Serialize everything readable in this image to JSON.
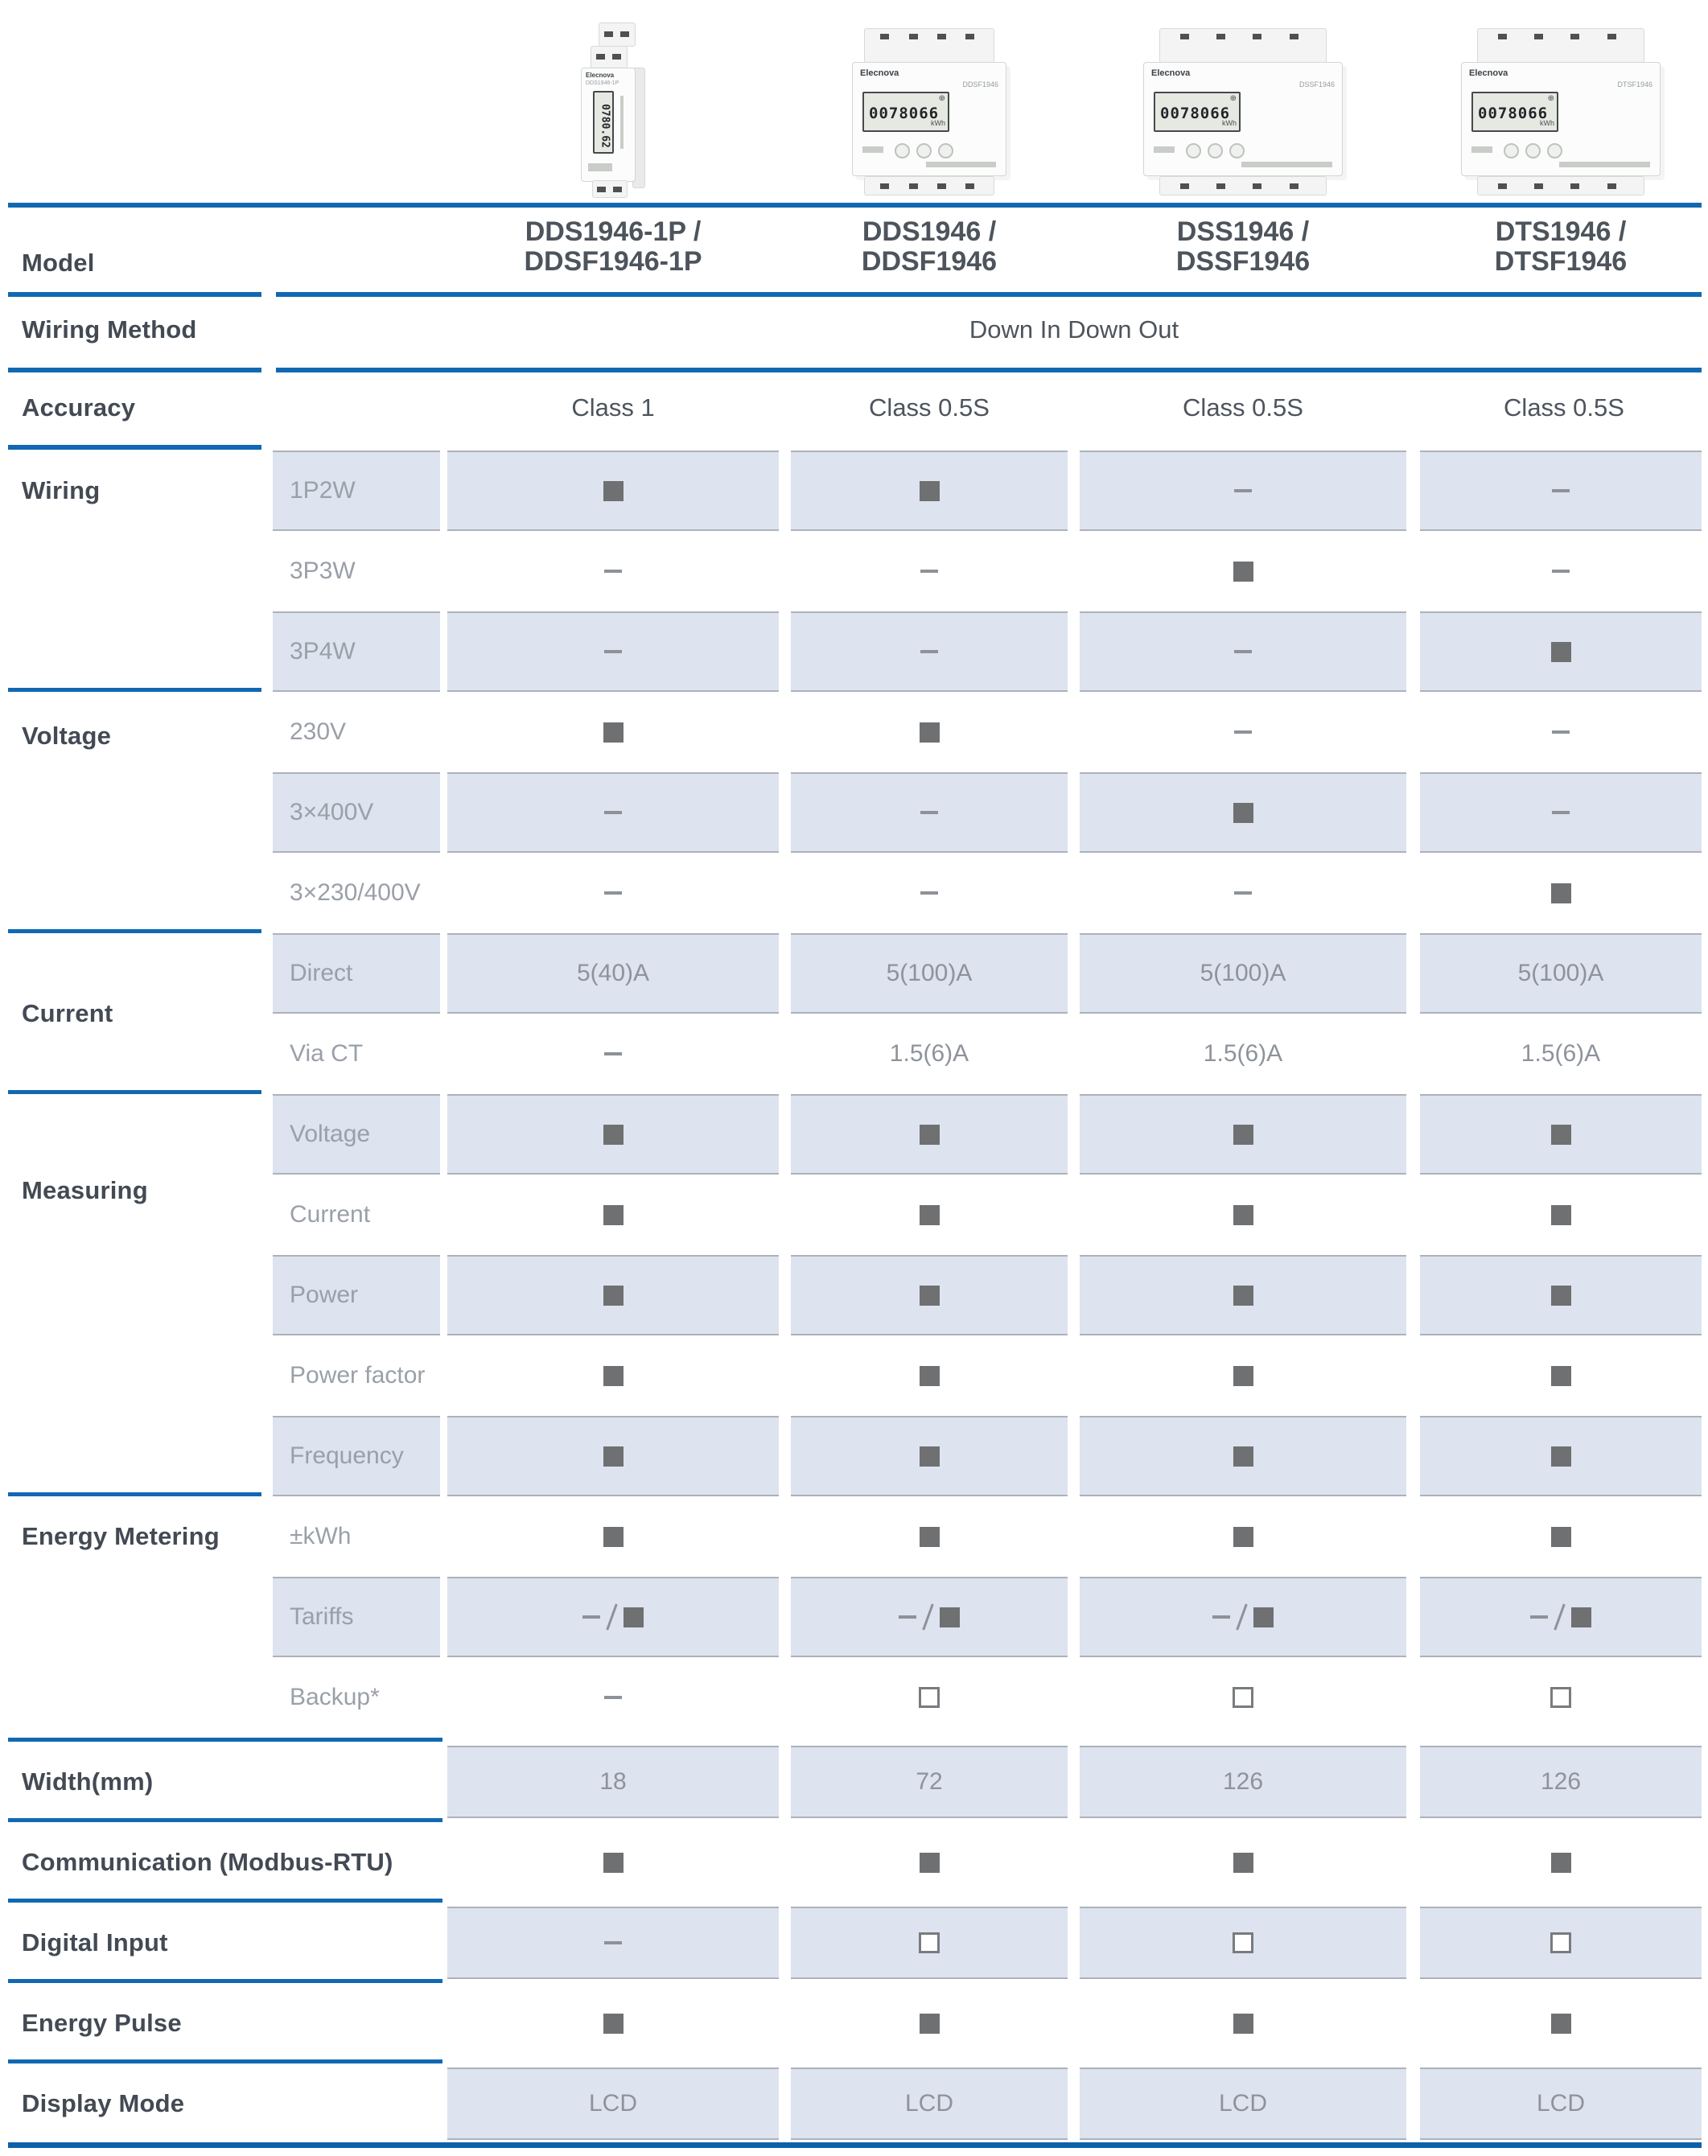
{
  "brand_color": "#1168b3",
  "header": {
    "model_label": "Model",
    "products": [
      {
        "model_line1": "DDS1946-1P /",
        "model_line2": "DDSF1946-1P",
        "brand": "Elecnova",
        "panel_code": "DDS1946-1P",
        "display_value": "0780.62",
        "display_unit": "kWh",
        "style": "slim"
      },
      {
        "model_line1": "DDS1946 /",
        "model_line2": "DDSF1946",
        "brand": "Elecnova",
        "panel_code": "DDSF1946",
        "display_value": "0078066",
        "display_unit": "kWh",
        "style": "wide"
      },
      {
        "model_line1": "DSS1946 /",
        "model_line2": "DSSF1946",
        "brand": "Elecnova",
        "panel_code": "DSSF1946",
        "display_value": "0078066",
        "display_unit": "kWh",
        "style": "wide"
      },
      {
        "model_line1": "DTS1946 /",
        "model_line2": "DTSF1946",
        "brand": "Elecnova",
        "panel_code": "DTSF1946",
        "display_value": "0078066",
        "display_unit": "kWh",
        "style": "wide"
      }
    ]
  },
  "top_rows": {
    "wiring_method": {
      "label": "Wiring Method",
      "value": "Down In Down Out"
    },
    "accuracy": {
      "label": "Accuracy",
      "values": [
        "Class 1",
        "Class 0.5S",
        "Class 0.5S",
        "Class 0.5S"
      ]
    }
  },
  "sections": [
    {
      "label": "Wiring",
      "rows": [
        {
          "sub": "1P2W",
          "cells": [
            "filled",
            "filled",
            "dash",
            "dash"
          ]
        },
        {
          "sub": "3P3W",
          "cells": [
            "dash",
            "dash",
            "filled",
            "dash"
          ]
        },
        {
          "sub": "3P4W",
          "cells": [
            "dash",
            "dash",
            "dash",
            "filled"
          ]
        }
      ]
    },
    {
      "label": "Voltage",
      "rows": [
        {
          "sub": "230V",
          "cells": [
            "filled",
            "filled",
            "dash",
            "dash"
          ]
        },
        {
          "sub": "3×400V",
          "cells": [
            "dash",
            "dash",
            "filled",
            "dash"
          ]
        },
        {
          "sub": "3×230/400V",
          "cells": [
            "dash",
            "dash",
            "dash",
            "filled"
          ]
        }
      ]
    },
    {
      "label": "Current",
      "rows": [
        {
          "sub": "Direct",
          "cells": [
            "5(40)A",
            "5(100)A",
            "5(100)A",
            "5(100)A"
          ]
        },
        {
          "sub": "Via CT",
          "cells": [
            "dash",
            "1.5(6)A",
            "1.5(6)A",
            "1.5(6)A"
          ]
        }
      ]
    },
    {
      "label": "Measuring",
      "rows": [
        {
          "sub": "Voltage",
          "cells": [
            "filled",
            "filled",
            "filled",
            "filled"
          ]
        },
        {
          "sub": "Current",
          "cells": [
            "filled",
            "filled",
            "filled",
            "filled"
          ]
        },
        {
          "sub": "Power",
          "cells": [
            "filled",
            "filled",
            "filled",
            "filled"
          ]
        },
        {
          "sub": "Power factor",
          "cells": [
            "filled",
            "filled",
            "filled",
            "filled"
          ]
        },
        {
          "sub": "Frequency",
          "cells": [
            "filled",
            "filled",
            "filled",
            "filled"
          ]
        }
      ]
    },
    {
      "label": "Energy Metering",
      "rows": [
        {
          "sub": "±kWh",
          "cells": [
            "filled",
            "filled",
            "filled",
            "filled"
          ]
        },
        {
          "sub": "Tariffs",
          "cells": [
            "dash/filled",
            "dash/filled",
            "dash/filled",
            "dash/filled"
          ]
        },
        {
          "sub": "Backup*",
          "cells": [
            "dash",
            "hollow",
            "hollow",
            "hollow"
          ]
        }
      ]
    }
  ],
  "bottom_rows": [
    {
      "label": "Width(mm)",
      "cells": [
        "18",
        "72",
        "126",
        "126"
      ]
    },
    {
      "label": "Communication (Modbus-RTU)",
      "cells": [
        "filled",
        "filled",
        "filled",
        "filled"
      ]
    },
    {
      "label": "Digital Input",
      "cells": [
        "dash",
        "hollow",
        "hollow",
        "hollow"
      ]
    },
    {
      "label": "Energy Pulse",
      "cells": [
        "filled",
        "filled",
        "filled",
        "filled"
      ]
    },
    {
      "label": "Display Mode",
      "cells": [
        "LCD",
        "LCD",
        "LCD",
        "LCD"
      ]
    }
  ]
}
